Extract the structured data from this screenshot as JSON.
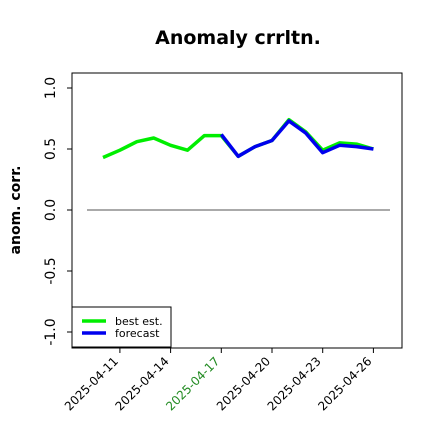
{
  "chart_data": {
    "type": "line",
    "title": "Anomaly crrltn.",
    "ylabel": "anom. corr.",
    "xlabel": "",
    "ylim": [
      -1.0,
      1.0
    ],
    "yticks": [
      -1.0,
      -0.5,
      0.0,
      0.5,
      1.0
    ],
    "ytick_labels": [
      "-1.0",
      "-0.5",
      "0.0",
      "0.5",
      "1.0"
    ],
    "x": [
      "2025-04-10",
      "2025-04-11",
      "2025-04-12",
      "2025-04-13",
      "2025-04-14",
      "2025-04-15",
      "2025-04-16",
      "2025-04-17",
      "2025-04-18",
      "2025-04-19",
      "2025-04-20",
      "2025-04-21",
      "2025-04-22",
      "2025-04-23",
      "2025-04-24",
      "2025-04-25",
      "2025-04-26"
    ],
    "xticks": [
      "2025-04-11",
      "2025-04-14",
      "2025-04-17",
      "2025-04-20",
      "2025-04-23",
      "2025-04-26"
    ],
    "highlight_tick": "2025-04-17",
    "highlight_color": "#228B22",
    "series": [
      {
        "name": "best est.",
        "color": "#00ee00",
        "values": [
          0.43,
          0.49,
          0.56,
          0.59,
          0.53,
          0.49,
          0.61,
          0.61,
          0.44,
          0.52,
          0.57,
          0.74,
          0.64,
          0.49,
          0.55,
          0.54,
          0.5
        ]
      },
      {
        "name": "forecast",
        "color": "#0000ee",
        "values": [
          null,
          null,
          null,
          null,
          null,
          null,
          null,
          0.62,
          0.44,
          0.52,
          0.57,
          0.73,
          0.63,
          0.47,
          0.53,
          0.52,
          0.5
        ]
      }
    ],
    "reference_line": 0.0,
    "grid": false,
    "legend_position": "bottom-left"
  }
}
